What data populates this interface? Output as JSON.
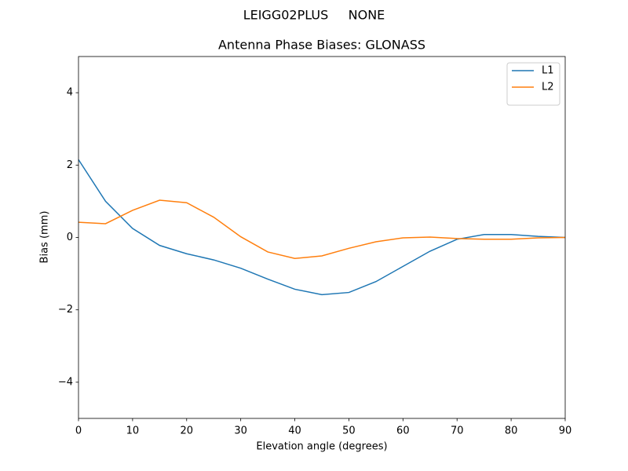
{
  "chart_data": {
    "type": "line",
    "suptitle": "LEIGG02PLUS     NONE",
    "title": "Antenna Phase Biases: GLONASS",
    "x_label": "Elevation angle (degrees)",
    "y_label": "Bias (mm)",
    "x": [
      0,
      5,
      10,
      15,
      20,
      25,
      30,
      35,
      40,
      45,
      50,
      55,
      60,
      65,
      70,
      75,
      80,
      85,
      90
    ],
    "series": [
      {
        "name": "L1",
        "color": "#1f77b4",
        "values": [
          2.15,
          1.0,
          0.25,
          -0.22,
          -0.45,
          -0.62,
          -0.85,
          -1.15,
          -1.43,
          -1.58,
          -1.52,
          -1.22,
          -0.8,
          -0.38,
          -0.05,
          0.08,
          0.08,
          0.03,
          0.0
        ]
      },
      {
        "name": "L2",
        "color": "#ff7f0e",
        "values": [
          0.42,
          0.38,
          0.75,
          1.03,
          0.96,
          0.56,
          0.02,
          -0.4,
          -0.58,
          -0.51,
          -0.3,
          -0.12,
          -0.01,
          0.01,
          -0.03,
          -0.05,
          -0.05,
          -0.01,
          0.0
        ]
      }
    ],
    "xlim": [
      0,
      90
    ],
    "xticks": [
      0,
      10,
      20,
      30,
      40,
      50,
      60,
      70,
      80,
      90
    ],
    "ylim": [
      -5,
      5
    ],
    "yticks": [
      {
        "value": -4,
        "label": "−4"
      },
      {
        "value": -2,
        "label": "−2"
      },
      0,
      2,
      4
    ],
    "legend": "upper right",
    "grid": false
  }
}
